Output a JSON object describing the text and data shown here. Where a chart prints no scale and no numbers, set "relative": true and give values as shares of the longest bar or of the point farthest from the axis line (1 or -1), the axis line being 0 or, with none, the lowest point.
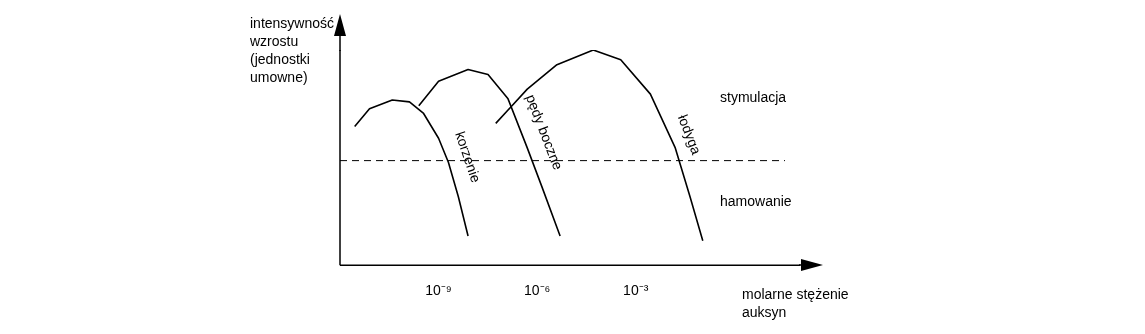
{
  "chart_data": {
    "type": "line",
    "relative": true,
    "log": "x",
    "legend": false,
    "marker": "none",
    "line_style": "solid",
    "xlabel": "molarne stężenie auksyn",
    "ylabel": "intensywność wzrostu (jednostki umowne)",
    "xlim": [
      1e-12,
      100
    ],
    "xticks": [
      {
        "value": 1e-09,
        "label": "10⁻⁹"
      },
      {
        "value": 1e-06,
        "label": "10⁻⁶"
      },
      {
        "value": 0.001,
        "label": "10⁻³"
      }
    ],
    "series": [
      {
        "name": "korzenie",
        "color": "#000000",
        "x": [
          2.8e-12,
          7.9e-12,
          3.9e-11,
          1.3e-10,
          3.5e-10,
          1e-09,
          2e-09,
          4e-09,
          7.9e-09
        ],
        "values": [
          0.645,
          0.727,
          0.768,
          0.759,
          0.705,
          0.59,
          0.477,
          0.318,
          0.136
        ]
      },
      {
        "name": "pędy boczne",
        "color": "#000000",
        "x": [
          2.5e-10,
          1e-09,
          7.9e-09,
          3.2e-08,
          1.3e-07,
          5e-07,
          1.4e-06,
          5e-06
        ],
        "values": [
          0.741,
          0.855,
          0.909,
          0.886,
          0.773,
          0.545,
          0.364,
          0.136
        ]
      },
      {
        "name": "łodyga",
        "color": "#000000",
        "x": [
          5.5e-08,
          5e-07,
          4e-06,
          5.1e-05,
          0.00035,
          0.0028,
          0.016,
          0.045,
          0.11
        ],
        "values": [
          0.659,
          0.818,
          0.932,
          1.0,
          0.955,
          0.795,
          0.545,
          0.318,
          0.114
        ]
      }
    ],
    "ref_lines": [
      {
        "axis": "y",
        "value": 0.486,
        "line_style": "dashed",
        "color": "#000000"
      }
    ],
    "annotations": [
      "stymulacja",
      "hamowanie"
    ]
  }
}
